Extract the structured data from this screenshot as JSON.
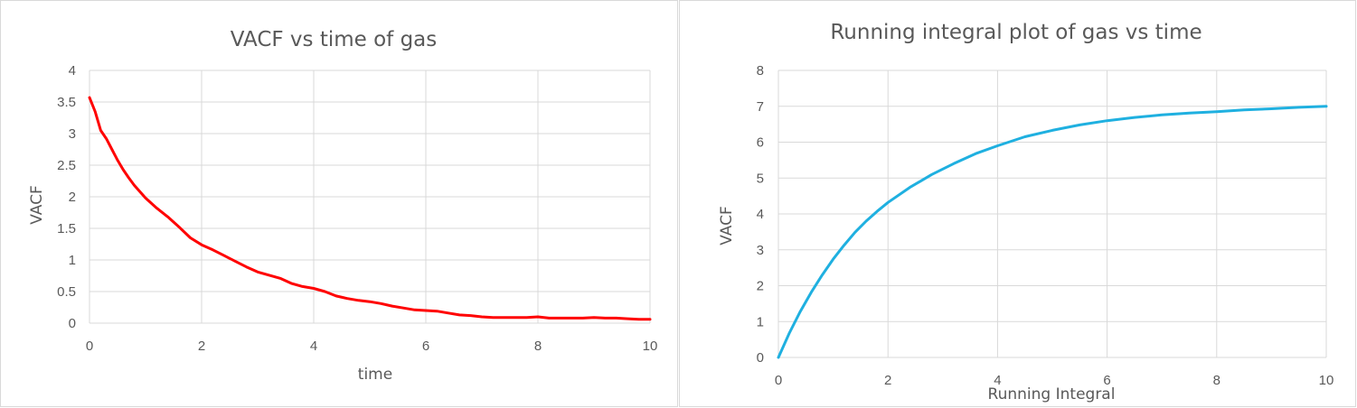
{
  "chart_data": [
    {
      "type": "line",
      "title": "VACF vs time of gas",
      "xlabel": "time",
      "ylabel": "VACF",
      "xlim": [
        0,
        10
      ],
      "ylim": [
        0,
        4
      ],
      "xticks": [
        "0",
        "2",
        "4",
        "6",
        "8",
        "10"
      ],
      "yticks": [
        "0",
        "0.5",
        "1",
        "1.5",
        "2",
        "2.5",
        "3",
        "3.5",
        "4"
      ],
      "grid": true,
      "series": [
        {
          "color": "#ff0000",
          "x": [
            0,
            0.1,
            0.2,
            0.3,
            0.4,
            0.5,
            0.6,
            0.7,
            0.8,
            0.9,
            1.0,
            1.2,
            1.4,
            1.6,
            1.8,
            2.0,
            2.2,
            2.4,
            2.6,
            2.8,
            3.0,
            3.2,
            3.4,
            3.6,
            3.8,
            4.0,
            4.2,
            4.4,
            4.6,
            4.8,
            5.0,
            5.2,
            5.4,
            5.6,
            5.8,
            6.0,
            6.2,
            6.4,
            6.6,
            6.8,
            7.0,
            7.2,
            7.4,
            7.6,
            7.8,
            8.0,
            8.2,
            8.4,
            8.6,
            8.8,
            9.0,
            9.2,
            9.4,
            9.6,
            9.8,
            10.0
          ],
          "y": [
            3.57,
            3.35,
            3.05,
            2.92,
            2.75,
            2.58,
            2.43,
            2.3,
            2.18,
            2.08,
            1.98,
            1.82,
            1.68,
            1.52,
            1.35,
            1.24,
            1.16,
            1.07,
            0.98,
            0.89,
            0.81,
            0.76,
            0.71,
            0.63,
            0.58,
            0.55,
            0.5,
            0.43,
            0.39,
            0.36,
            0.34,
            0.31,
            0.27,
            0.24,
            0.21,
            0.2,
            0.19,
            0.16,
            0.13,
            0.12,
            0.1,
            0.09,
            0.09,
            0.09,
            0.09,
            0.1,
            0.08,
            0.08,
            0.08,
            0.08,
            0.09,
            0.08,
            0.08,
            0.07,
            0.06,
            0.06
          ]
        }
      ]
    },
    {
      "type": "line",
      "title": "Running integral plot of gas vs time",
      "xlabel": "Running Integral",
      "ylabel": "VACF",
      "xlim": [
        0,
        10
      ],
      "ylim": [
        0,
        8
      ],
      "xticks": [
        "0",
        "2",
        "4",
        "6",
        "8",
        "10"
      ],
      "yticks": [
        "0",
        "1",
        "2",
        "3",
        "4",
        "5",
        "6",
        "7",
        "8"
      ],
      "grid": true,
      "series": [
        {
          "color": "#1fb0e0",
          "x": [
            0,
            0.2,
            0.4,
            0.6,
            0.8,
            1.0,
            1.2,
            1.4,
            1.6,
            1.8,
            2.0,
            2.4,
            2.8,
            3.2,
            3.6,
            4.0,
            4.5,
            5.0,
            5.5,
            6.0,
            6.5,
            7.0,
            7.5,
            8.0,
            8.5,
            9.0,
            9.5,
            10.0
          ],
          "y": [
            0,
            0.68,
            1.28,
            1.82,
            2.3,
            2.74,
            3.13,
            3.49,
            3.8,
            4.07,
            4.32,
            4.74,
            5.1,
            5.4,
            5.68,
            5.9,
            6.15,
            6.33,
            6.48,
            6.6,
            6.69,
            6.76,
            6.81,
            6.85,
            6.9,
            6.93,
            6.97,
            7.0
          ]
        }
      ]
    }
  ]
}
